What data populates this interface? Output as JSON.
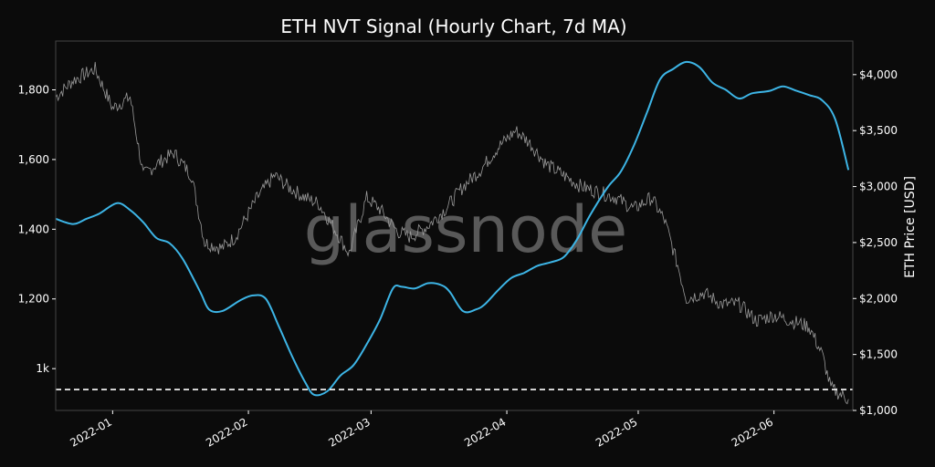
{
  "chart_data": {
    "type": "line",
    "title": "ETH NVT Signal (Hourly Chart, 7d MA)",
    "watermark": "glassnode",
    "xlabel": "",
    "ylabel_left": "",
    "ylabel_right": "ETH Price [USD]",
    "x_range": [
      "2021-12-19",
      "2022-06-19"
    ],
    "x_ticks": [
      {
        "label": "2022-01",
        "date": "2022-01-01"
      },
      {
        "label": "2022-02",
        "date": "2022-02-01"
      },
      {
        "label": "2022-03",
        "date": "2022-03-01"
      },
      {
        "label": "2022-04",
        "date": "2022-04-01"
      },
      {
        "label": "2022-05",
        "date": "2022-05-01"
      },
      {
        "label": "2022-06",
        "date": "2022-06-01"
      }
    ],
    "ylim_left": [
      880,
      1940
    ],
    "yticks_left": [
      {
        "label": "1k",
        "value": 1000
      },
      {
        "label": "1,200",
        "value": 1200
      },
      {
        "label": "1,400",
        "value": 1400
      },
      {
        "label": "1,600",
        "value": 1600
      },
      {
        "label": "1,800",
        "value": 1800
      }
    ],
    "ylim_right": [
      1000,
      4300
    ],
    "yticks_right": [
      {
        "label": "$1,000",
        "value": 1000
      },
      {
        "label": "$1,500",
        "value": 1500
      },
      {
        "label": "$2,000",
        "value": 2000
      },
      {
        "label": "$2,500",
        "value": 2500
      },
      {
        "label": "$3,000",
        "value": 3000
      },
      {
        "label": "$3,500",
        "value": 3500
      },
      {
        "label": "$4,000",
        "value": 4000
      }
    ],
    "reference_line": {
      "value": 940,
      "axis": "left",
      "style": "dashed",
      "color": "#ffffff"
    },
    "grid": false,
    "colors": {
      "nvt": "#3db5e6",
      "price": "#9a9a9a",
      "background": "#0b0b0b",
      "frame": "#444444"
    },
    "series": [
      {
        "axis": "left",
        "points": [
          [
            "2021-12-19",
            1430
          ],
          [
            "2021-12-23",
            1415
          ],
          [
            "2021-12-26",
            1430
          ],
          [
            "2021-12-29",
            1445
          ],
          [
            "2022-01-02",
            1475
          ],
          [
            "2022-01-05",
            1455
          ],
          [
            "2022-01-08",
            1420
          ],
          [
            "2022-01-11",
            1375
          ],
          [
            "2022-01-14",
            1360
          ],
          [
            "2022-01-17",
            1315
          ],
          [
            "2022-01-21",
            1220
          ],
          [
            "2022-01-23",
            1170
          ],
          [
            "2022-01-26",
            1165
          ],
          [
            "2022-01-30",
            1195
          ],
          [
            "2022-02-02",
            1210
          ],
          [
            "2022-02-05",
            1200
          ],
          [
            "2022-02-08",
            1120
          ],
          [
            "2022-02-11",
            1035
          ],
          [
            "2022-02-14",
            960
          ],
          [
            "2022-02-16",
            925
          ],
          [
            "2022-02-19",
            935
          ],
          [
            "2022-02-22",
            980
          ],
          [
            "2022-02-25",
            1010
          ],
          [
            "2022-02-28",
            1070
          ],
          [
            "2022-03-03",
            1140
          ],
          [
            "2022-03-06",
            1230
          ],
          [
            "2022-03-08",
            1235
          ],
          [
            "2022-03-11",
            1230
          ],
          [
            "2022-03-14",
            1245
          ],
          [
            "2022-03-17",
            1240
          ],
          [
            "2022-03-19",
            1220
          ],
          [
            "2022-03-22",
            1165
          ],
          [
            "2022-03-25",
            1170
          ],
          [
            "2022-03-27",
            1185
          ],
          [
            "2022-03-30",
            1225
          ],
          [
            "2022-04-02",
            1260
          ],
          [
            "2022-04-05",
            1275
          ],
          [
            "2022-04-08",
            1295
          ],
          [
            "2022-04-11",
            1305
          ],
          [
            "2022-04-14",
            1320
          ],
          [
            "2022-04-17",
            1370
          ],
          [
            "2022-04-20",
            1440
          ],
          [
            "2022-04-24",
            1520
          ],
          [
            "2022-04-27",
            1565
          ],
          [
            "2022-04-30",
            1640
          ],
          [
            "2022-05-03",
            1735
          ],
          [
            "2022-05-06",
            1830
          ],
          [
            "2022-05-09",
            1860
          ],
          [
            "2022-05-12",
            1880
          ],
          [
            "2022-05-15",
            1865
          ],
          [
            "2022-05-18",
            1820
          ],
          [
            "2022-05-21",
            1800
          ],
          [
            "2022-05-24",
            1775
          ],
          [
            "2022-05-27",
            1790
          ],
          [
            "2022-05-31",
            1797
          ],
          [
            "2022-06-03",
            1810
          ],
          [
            "2022-06-06",
            1798
          ],
          [
            "2022-06-09",
            1785
          ],
          [
            "2022-06-12",
            1770
          ],
          [
            "2022-06-15",
            1715
          ],
          [
            "2022-06-18",
            1570
          ]
        ]
      },
      {
        "axis": "right",
        "points": [
          [
            "2021-12-19",
            3800
          ],
          [
            "2021-12-23",
            3950
          ],
          [
            "2021-12-28",
            4050
          ],
          [
            "2022-01-01",
            3700
          ],
          [
            "2022-01-05",
            3800
          ],
          [
            "2022-01-08",
            3100
          ],
          [
            "2022-01-11",
            3200
          ],
          [
            "2022-01-15",
            3300
          ],
          [
            "2022-01-19",
            3100
          ],
          [
            "2022-01-22",
            2500
          ],
          [
            "2022-01-26",
            2450
          ],
          [
            "2022-01-29",
            2550
          ],
          [
            "2022-02-03",
            2900
          ],
          [
            "2022-02-07",
            3100
          ],
          [
            "2022-02-10",
            3000
          ],
          [
            "2022-02-14",
            2900
          ],
          [
            "2022-02-17",
            2850
          ],
          [
            "2022-02-21",
            2600
          ],
          [
            "2022-02-24",
            2400
          ],
          [
            "2022-02-28",
            2900
          ],
          [
            "2022-03-03",
            2800
          ],
          [
            "2022-03-07",
            2600
          ],
          [
            "2022-03-10",
            2550
          ],
          [
            "2022-03-14",
            2650
          ],
          [
            "2022-03-18",
            2800
          ],
          [
            "2022-03-22",
            3000
          ],
          [
            "2022-03-26",
            3150
          ],
          [
            "2022-03-30",
            3350
          ],
          [
            "2022-04-03",
            3500
          ],
          [
            "2022-04-06",
            3400
          ],
          [
            "2022-04-10",
            3200
          ],
          [
            "2022-04-14",
            3100
          ],
          [
            "2022-04-18",
            3000
          ],
          [
            "2022-04-22",
            2950
          ],
          [
            "2022-04-26",
            2900
          ],
          [
            "2022-04-30",
            2800
          ],
          [
            "2022-05-04",
            2900
          ],
          [
            "2022-05-07",
            2700
          ],
          [
            "2022-05-10",
            2300
          ],
          [
            "2022-05-12",
            2000
          ],
          [
            "2022-05-16",
            2050
          ],
          [
            "2022-05-20",
            1950
          ],
          [
            "2022-05-24",
            1950
          ],
          [
            "2022-05-28",
            1800
          ],
          [
            "2022-06-01",
            1850
          ],
          [
            "2022-06-05",
            1800
          ],
          [
            "2022-06-09",
            1750
          ],
          [
            "2022-06-12",
            1500
          ],
          [
            "2022-06-14",
            1200
          ],
          [
            "2022-06-18",
            1100
          ]
        ]
      }
    ]
  }
}
